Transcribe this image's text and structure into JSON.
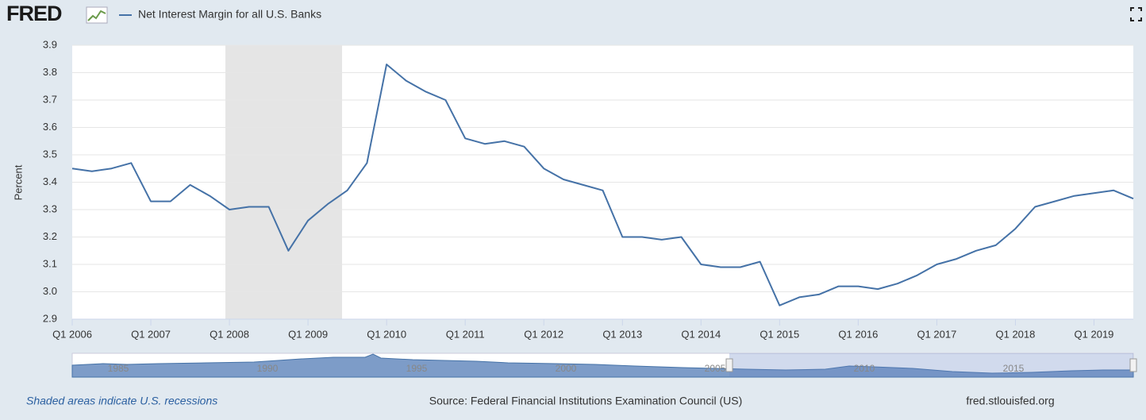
{
  "header": {
    "logo": "FRED"
  },
  "chart_data": {
    "type": "line",
    "series": [
      {
        "name": "Net Interest Margin for all U.S. Banks",
        "color": "#4572a7",
        "values": [
          3.45,
          3.44,
          3.45,
          3.47,
          3.33,
          3.33,
          3.39,
          3.35,
          3.3,
          3.31,
          3.31,
          3.15,
          3.26,
          3.32,
          3.37,
          3.47,
          3.83,
          3.77,
          3.73,
          3.7,
          3.56,
          3.54,
          3.55,
          3.53,
          3.45,
          3.41,
          3.39,
          3.37,
          3.2,
          3.2,
          3.19,
          3.2,
          3.1,
          3.09,
          3.09,
          3.11,
          2.95,
          2.98,
          2.99,
          3.02,
          3.02,
          3.01,
          3.03,
          3.06,
          3.1,
          3.12,
          3.15,
          3.17,
          3.23,
          3.31,
          3.33,
          3.35,
          3.36,
          3.37,
          3.34
        ]
      }
    ],
    "categories": [
      "Q1 2006",
      null,
      null,
      null,
      "Q1 2007",
      null,
      null,
      null,
      "Q1 2008",
      null,
      null,
      null,
      "Q1 2009",
      null,
      null,
      null,
      "Q1 2010",
      null,
      null,
      null,
      "Q1 2011",
      null,
      null,
      null,
      "Q1 2012",
      null,
      null,
      null,
      "Q1 2013",
      null,
      null,
      null,
      "Q1 2014",
      null,
      null,
      null,
      "Q1 2015",
      null,
      null,
      null,
      "Q1 2016",
      null,
      null,
      null,
      "Q1 2017",
      null,
      null,
      null,
      "Q1 2018",
      null,
      null,
      null,
      "Q1 2019",
      null,
      null
    ],
    "ylim": [
      2.9,
      3.9
    ],
    "yticks": [
      2.9,
      {
        "value": 3,
        "label": "3.0"
      },
      3.1,
      3.2,
      3.3,
      3.4,
      3.5,
      3.6,
      3.7,
      3.8,
      3.9
    ],
    "ylabel": "Percent",
    "grid": true
  },
  "navigator": {
    "labels": [
      "1985",
      "1990",
      "1995",
      "2000",
      "2005",
      "2010",
      "2015"
    ]
  },
  "footer": {
    "note": "Shaded areas indicate U.S. recessions",
    "source": "Source: Federal Financial Institutions Examination Council (US)",
    "site": "fred.stlouisfed.org"
  }
}
